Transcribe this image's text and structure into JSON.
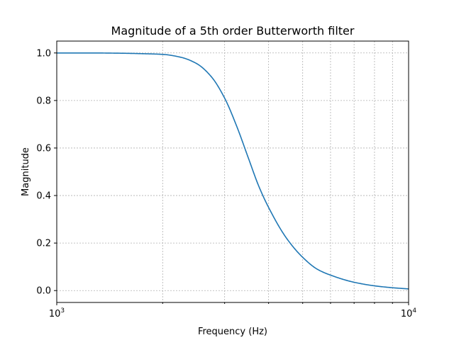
{
  "chart_data": {
    "type": "line",
    "title": "Magnitude of a 5th order Butterworth filter",
    "xlabel": "Frequency (Hz)",
    "ylabel": "Magnitude",
    "xscale": "log",
    "xlim": [
      1000,
      10000
    ],
    "ylim": [
      -0.05,
      1.05
    ],
    "grid": true,
    "grid_style": "dashed",
    "x_ticks": [
      {
        "value": 1000,
        "base": "10",
        "exp": "3"
      },
      {
        "value": 10000,
        "base": "10",
        "exp": "4"
      }
    ],
    "y_ticks": [
      {
        "value": 0.0,
        "label": "0.0"
      },
      {
        "value": 0.2,
        "label": "0.2"
      },
      {
        "value": 0.4,
        "label": "0.4"
      },
      {
        "value": 0.6,
        "label": "0.6"
      },
      {
        "value": 0.8,
        "label": "0.8"
      },
      {
        "value": 1.0,
        "label": "1.0"
      }
    ],
    "series": [
      {
        "color": "#1f77b4",
        "x": [
          1000,
          1250,
          1500,
          1750,
          2000,
          2250,
          2500,
          2750,
          3000,
          3250,
          3500,
          3750,
          4000,
          4500,
          5000,
          5500,
          6000,
          7000,
          8000,
          9000,
          10000
        ],
        "y": [
          1.0,
          1.0,
          0.999,
          0.997,
          0.994,
          0.982,
          0.955,
          0.9,
          0.81,
          0.69,
          0.56,
          0.44,
          0.35,
          0.22,
          0.14,
          0.09,
          0.065,
          0.035,
          0.02,
          0.012,
          0.007
        ]
      }
    ]
  }
}
